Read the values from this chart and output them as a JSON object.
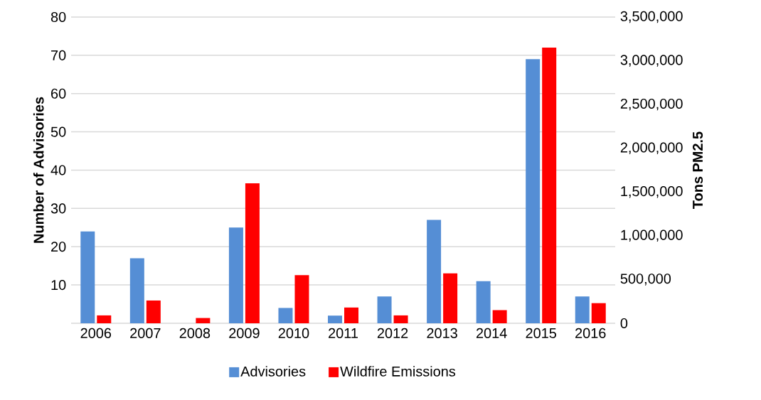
{
  "chart_data": {
    "type": "bar",
    "categories": [
      "2006",
      "2007",
      "2008",
      "2009",
      "2010",
      "2011",
      "2012",
      "2013",
      "2014",
      "2015",
      "2016"
    ],
    "series": [
      {
        "name": "Advisories",
        "color": "#558ed5",
        "values": [
          24,
          17,
          0,
          25,
          4,
          2,
          7,
          27,
          11,
          69,
          7
        ]
      },
      {
        "name": "Wildfire Emissions",
        "color": "#ff0000",
        "axis": "y2",
        "values": [
          90000,
          260000,
          60000,
          1600000,
          550000,
          180000,
          90000,
          570000,
          150000,
          3150000,
          230000
        ]
      }
    ],
    "ylabel": "Number of Advisories",
    "y2label": "Tons PM2.5",
    "ylim": [
      0,
      80
    ],
    "yticks": [
      10,
      20,
      30,
      40,
      50,
      60,
      70,
      80
    ],
    "y2lim": [
      0,
      3500000
    ],
    "y2ticks": [
      {
        "value": 0,
        "label": "0"
      },
      {
        "value": 500000,
        "label": "500,000"
      },
      {
        "value": 1000000,
        "label": "1,000,000"
      },
      {
        "value": 1500000,
        "label": "1,500,000"
      },
      {
        "value": 2000000,
        "label": "2,000,000"
      },
      {
        "value": 2500000,
        "label": "2,500,000"
      },
      {
        "value": 3000000,
        "label": "3,000,000"
      },
      {
        "value": 3500000,
        "label": "3,500,000"
      }
    ],
    "grid": "y",
    "legend": "bottom"
  }
}
